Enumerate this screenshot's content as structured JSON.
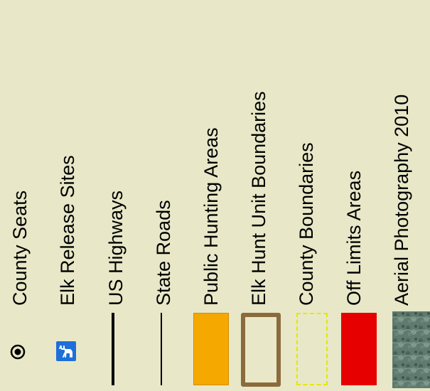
{
  "legend": {
    "items": [
      {
        "label": "County Seats",
        "symbol": "county-seat-icon"
      },
      {
        "label": "Elk Release Sites",
        "symbol": "elk-icon",
        "color": "#1e6fd9"
      },
      {
        "label": "US Highways",
        "symbol": "thick-line",
        "color": "#000000"
      },
      {
        "label": "State Roads",
        "symbol": "thin-line",
        "color": "#000000"
      },
      {
        "label": "Public Hunting Areas",
        "symbol": "fill",
        "color": "#f5a800"
      },
      {
        "label": "Elk Hunt Unit Boundaries",
        "symbol": "outline",
        "color": "#8b6b3d"
      },
      {
        "label": "County Boundaries",
        "symbol": "dashed-outline",
        "color": "#e6e600"
      },
      {
        "label": "Off Limits Areas",
        "symbol": "fill",
        "color": "#e60000"
      },
      {
        "label": "Aerial Photography 2010",
        "symbol": "aerial-texture"
      }
    ]
  }
}
